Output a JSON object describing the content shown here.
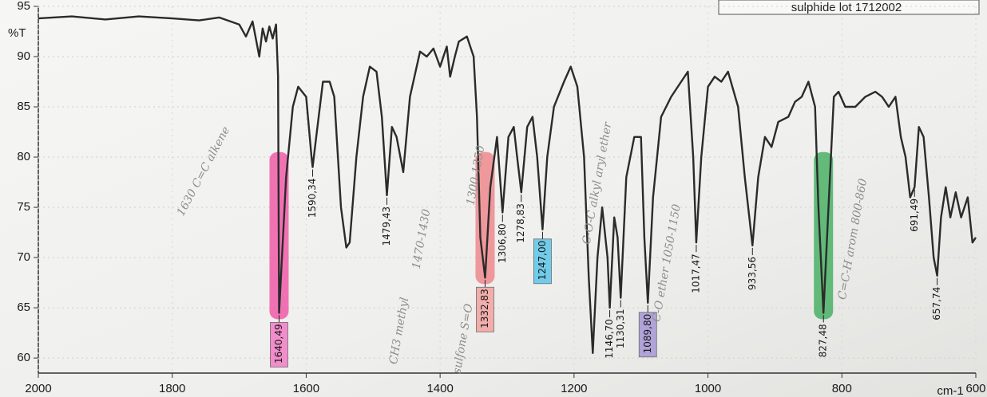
{
  "chart_data": {
    "type": "line",
    "title": "sulphide lot 1712002",
    "ylabel": "%T",
    "xlabel": "cm-1",
    "xlim": [
      2000,
      600
    ],
    "xticks": [
      2000,
      1800,
      1600,
      1400,
      1200,
      1000,
      800,
      600
    ],
    "ylim": [
      58.5,
      95
    ],
    "yticks": [
      60,
      65,
      70,
      75,
      80,
      85,
      90,
      95
    ],
    "grid": true,
    "color": "#2b2b2b",
    "x": [
      2000,
      1950,
      1900,
      1850,
      1800,
      1760,
      1730,
      1700,
      1690,
      1680,
      1670,
      1665,
      1660,
      1655,
      1650,
      1645,
      1642,
      1640.49,
      1630,
      1620,
      1612,
      1600,
      1592,
      1590.34,
      1585,
      1575,
      1565,
      1558,
      1548,
      1540,
      1535,
      1525,
      1515,
      1505,
      1495,
      1487,
      1479.43,
      1472,
      1465,
      1455,
      1445,
      1430,
      1420,
      1410,
      1400,
      1390,
      1385,
      1378,
      1372,
      1360,
      1350,
      1345,
      1340,
      1332.83,
      1325,
      1315,
      1306.8,
      1298,
      1290,
      1285,
      1278.83,
      1270,
      1262,
      1255,
      1247,
      1240,
      1230,
      1215,
      1205,
      1195,
      1185,
      1178,
      1172,
      1165,
      1158,
      1150,
      1146.7,
      1140,
      1135,
      1130.31,
      1122,
      1110,
      1100,
      1095,
      1089.8,
      1082,
      1070,
      1055,
      1040,
      1030,
      1022,
      1017.47,
      1010,
      1000,
      990,
      980,
      970,
      955,
      945,
      933.56,
      925,
      915,
      905,
      895,
      880,
      870,
      860,
      850,
      840,
      835,
      827.48,
      820,
      812,
      805,
      795,
      780,
      765,
      750,
      740,
      730,
      720,
      712,
      705,
      698,
      691.49,
      685,
      678,
      670,
      663,
      657.74,
      652,
      645,
      638,
      630,
      622,
      612,
      605,
      600
    ],
    "values": [
      93.8,
      94.0,
      93.7,
      94.0,
      93.8,
      93.6,
      93.9,
      93.2,
      92.0,
      93.5,
      90.0,
      92.8,
      91.5,
      93.0,
      91.8,
      93.2,
      88.0,
      64.5,
      78.0,
      85.0,
      87.0,
      86.0,
      80.0,
      79.0,
      82.0,
      87.5,
      87.5,
      86.0,
      75.0,
      71.0,
      71.5,
      80.0,
      86.0,
      89.0,
      88.5,
      84.0,
      76.2,
      83.0,
      82.0,
      78.5,
      86.0,
      90.5,
      90.0,
      90.8,
      89.0,
      91.0,
      88.0,
      90.0,
      91.5,
      92.0,
      90.0,
      84.0,
      72.0,
      68.0,
      77.0,
      82.0,
      74.5,
      82.0,
      83.0,
      80.0,
      76.5,
      83.0,
      84.0,
      80.0,
      72.8,
      80.0,
      85.0,
      87.5,
      89.0,
      87.0,
      80.0,
      68.0,
      60.5,
      70.0,
      75.0,
      70.0,
      65.0,
      74.0,
      72.0,
      66.0,
      78.0,
      82.0,
      82.0,
      72.0,
      65.5,
      76.0,
      84.0,
      86.0,
      87.5,
      88.5,
      80.0,
      71.5,
      80.0,
      87.0,
      88.0,
      87.5,
      88.5,
      85.0,
      78.0,
      71.2,
      78.0,
      82.0,
      81.0,
      83.5,
      84.0,
      85.5,
      86.0,
      87.5,
      85.0,
      75.0,
      64.5,
      75.0,
      86.0,
      86.5,
      85.0,
      85.0,
      86.0,
      86.5,
      86.0,
      85.0,
      86.0,
      82.0,
      80.0,
      76.0,
      77.0,
      83.0,
      82.0,
      76.0,
      70.0,
      68.2,
      74.0,
      77.0,
      74.0,
      76.5,
      74.0,
      76.0,
      71.5,
      72.0
    ],
    "peaks": {
      "x": [
        1640.49,
        1590.34,
        1479.43,
        1332.83,
        1306.8,
        1278.83,
        1247,
        1146.7,
        1130.31,
        1089.8,
        1017.47,
        933.56,
        827.48,
        691.49,
        657.74
      ],
      "values": [
        64.5,
        79.0,
        76.2,
        68.0,
        74.5,
        76.5,
        72.8,
        65.0,
        66.0,
        65.5,
        71.5,
        71.2,
        64.5,
        77.0,
        68.2
      ],
      "value_labels": [
        "1640,49",
        "1590,34",
        "1479,43",
        "1332,83",
        "1306,80",
        "1278,83",
        "1247,00",
        "1146,70",
        "1130,31",
        "1089,80",
        "1017,47",
        "933,56",
        "827,48",
        "691,49",
        "657,74"
      ],
      "label_fill": [
        "#f27cc4",
        null,
        null,
        "#f3a3a0",
        null,
        null,
        "#5cc6ea",
        null,
        null,
        "#a597d6",
        null,
        null,
        null,
        null,
        null
      ],
      "marker": [
        "#f0479f",
        null,
        null,
        "#ee7b80",
        null,
        null,
        null,
        null,
        null,
        null,
        null,
        null,
        "#34a853",
        null,
        null
      ]
    },
    "annotations": [
      "1630 C=C alkene",
      "CH3 methyl",
      "1470-1430",
      "sulfone S=O",
      "1300-1350",
      "C-O-C alkyl aryl ether",
      "C-O ether 1050-1150",
      "C=C-H arom 800-860"
    ]
  }
}
